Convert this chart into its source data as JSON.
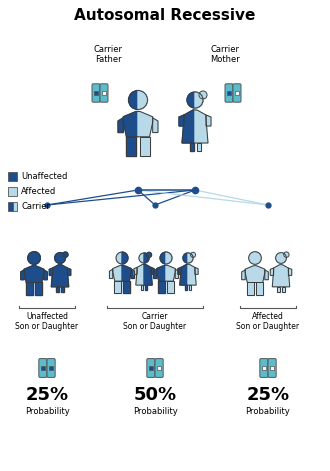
{
  "title": "Autosomal Recessive",
  "background_color": "#ffffff",
  "dark_blue": "#1e4d8c",
  "light_blue": "#b8d9e8",
  "teal": "#5bbccc",
  "outline_color": "#3a3a3a",
  "legend_items": [
    {
      "label": "Unaffected",
      "color": "#1e4d8c"
    },
    {
      "label": "Affected",
      "color": "#b8d9e8"
    },
    {
      "label": "Carrier",
      "color": "half"
    }
  ],
  "parent_labels": [
    "Carrier\nFather",
    "Carrier\nMother"
  ],
  "child_labels": [
    "Unaffected\nSon or Daughter",
    "Carrier\nSon or Daughter",
    "Affected\nSon or Daughter"
  ],
  "probabilities": [
    "25%",
    "50%",
    "25%"
  ],
  "prob_label": "Probability",
  "fig_w": 3.3,
  "fig_h": 4.71,
  "dpi": 100
}
